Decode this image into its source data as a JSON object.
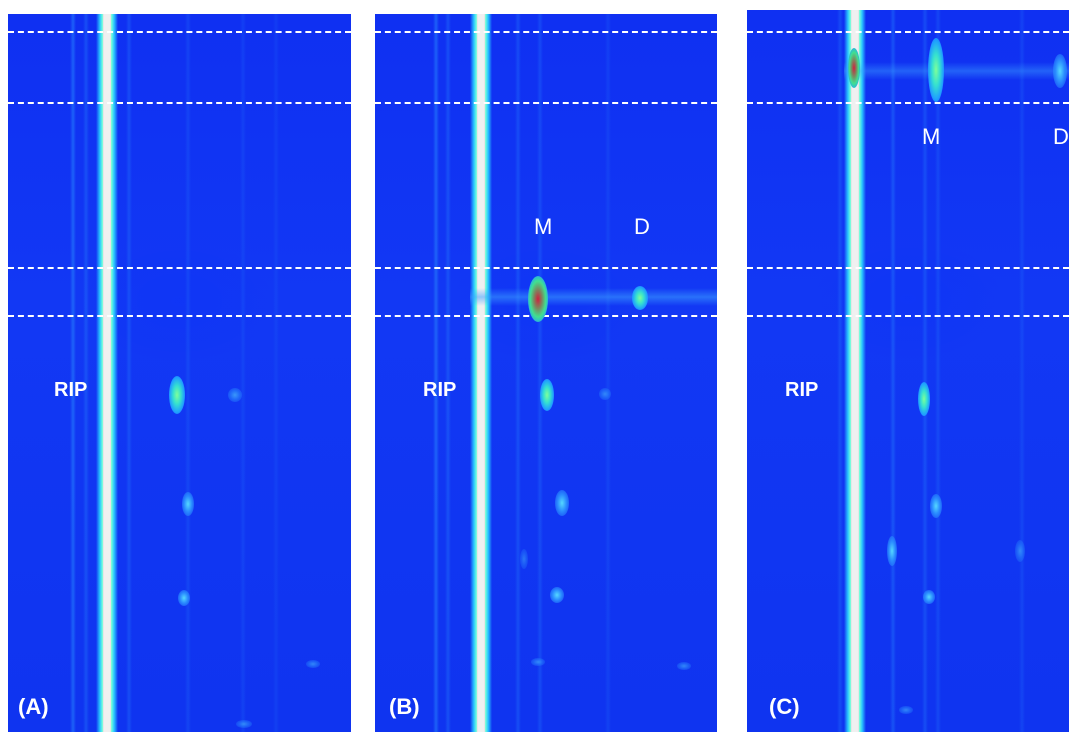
{
  "panels": [
    {
      "label": "(A)",
      "rip_label": "RIP"
    },
    {
      "label": "(B)",
      "rip_label": "RIP",
      "peak_m": "M",
      "peak_d": "D"
    },
    {
      "label": "(C)",
      "rip_label": "RIP",
      "peak_m": "M",
      "peak_d": "D"
    }
  ]
}
